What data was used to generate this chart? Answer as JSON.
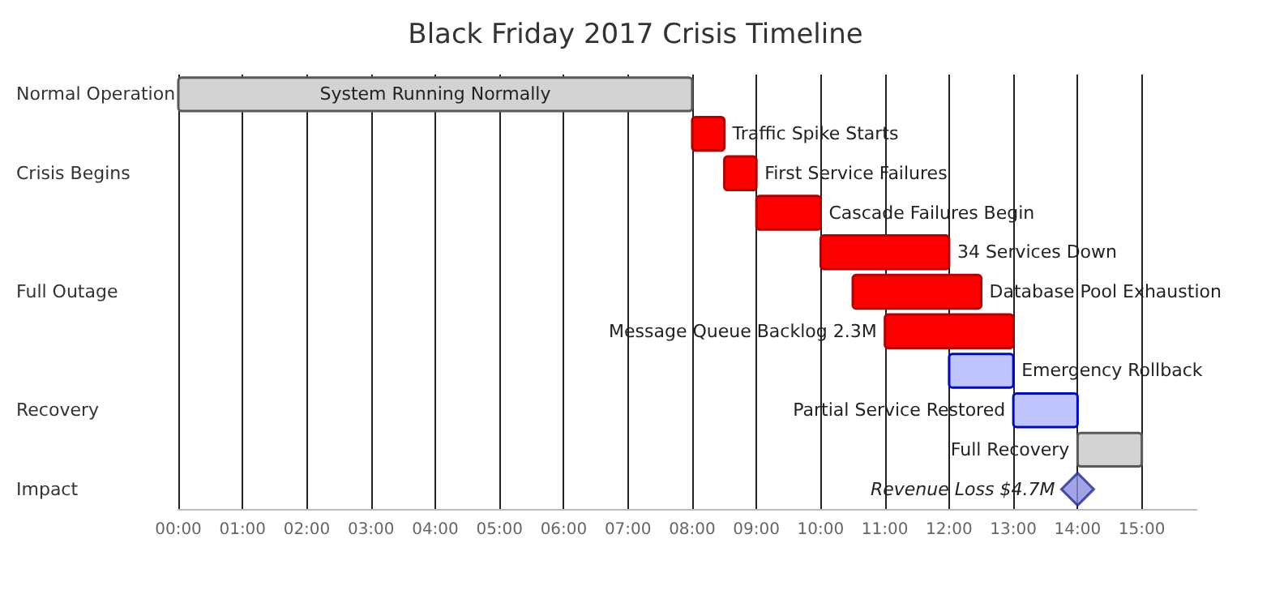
{
  "chart_data": {
    "type": "bar",
    "orientation": "horizontal",
    "title": "Black Friday 2017 Crisis Timeline",
    "categories": [
      "Normal Operation",
      null,
      "Crisis Begins",
      null,
      null,
      "Full Outage",
      null,
      null,
      "Recovery",
      null,
      "Impact"
    ],
    "series": [
      {
        "colors": [
          "#d3d3d3",
          "#ff0000",
          "#ff0000",
          "#ff0000",
          "#ff0000",
          "#ff0000",
          "#ff0000",
          "#c0c4ff",
          "#c0c4ff",
          "#d3d3d3",
          null
        ],
        "base": [
          0,
          8,
          8.5,
          9,
          10,
          10.5,
          11,
          12,
          13,
          14,
          null
        ],
        "values": [
          8,
          0.5,
          0.5,
          1,
          2,
          2,
          2,
          1,
          1,
          1,
          null
        ]
      },
      {
        "type": "scatter",
        "marker": "diamond",
        "color": "#8a8ee0",
        "values": [
          null,
          null,
          null,
          null,
          null,
          null,
          null,
          null,
          null,
          null,
          14
        ]
      }
    ],
    "annotations": [
      "System Running Normally",
      {
        "text": "Traffic Spike Starts",
        "x": 8.5
      },
      {
        "text": "First Service Failures",
        "x": 9
      },
      {
        "text": "Cascade Failures Begin",
        "x": 10
      },
      {
        "text": "34 Services Down",
        "x": 12
      },
      {
        "text": "Database Pool Exhaustion",
        "x": 12.5
      },
      {
        "text": "Message Queue Backlog 2.3M",
        "x": 11
      },
      {
        "text": "Emergency Rollback",
        "x": 13
      },
      {
        "text": "Partial Service Restored",
        "x": 13
      },
      {
        "text": "Full Recovery",
        "x": 14
      },
      {
        "text": "Revenue Loss $4.7M",
        "x": 14
      }
    ],
    "xlim": [
      0,
      15.85
    ],
    "xticks": [
      {
        "value": 0,
        "label": "00:00"
      },
      {
        "value": 1,
        "label": "01:00"
      },
      {
        "value": 2,
        "label": "02:00"
      },
      {
        "value": 3,
        "label": "03:00"
      },
      {
        "value": 4,
        "label": "04:00"
      },
      {
        "value": 5,
        "label": "05:00"
      },
      {
        "value": 6,
        "label": "06:00"
      },
      {
        "value": 7,
        "label": "07:00"
      },
      {
        "value": 8,
        "label": "08:00"
      },
      {
        "value": 9,
        "label": "09:00"
      },
      {
        "value": 10,
        "label": "10:00"
      },
      {
        "value": 11,
        "label": "11:00"
      },
      {
        "value": 12,
        "label": "12:00"
      },
      {
        "value": 13,
        "label": "13:00"
      },
      {
        "value": 14,
        "label": "14:00"
      },
      {
        "value": 15,
        "label": "15:00"
      }
    ],
    "grid": "x"
  }
}
